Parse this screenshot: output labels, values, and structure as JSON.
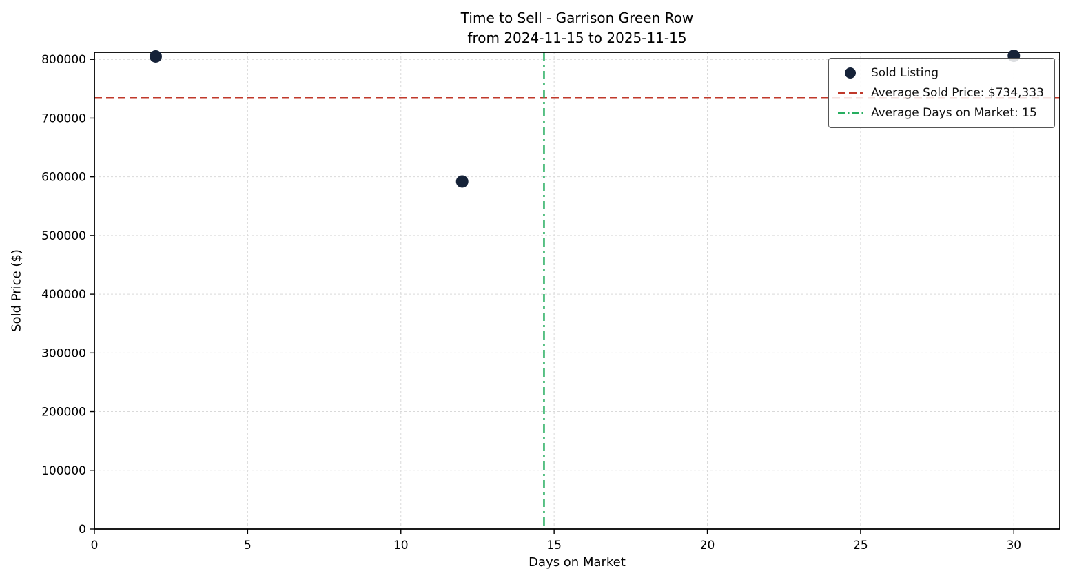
{
  "chart_data": {
    "type": "scatter",
    "title": "Time to Sell - Garrison Green Row",
    "subtitle": "from 2024-11-15 to 2025-11-15",
    "xlabel": "Days on Market",
    "ylabel": "Sold Price ($)",
    "series_name": "Sold Listing",
    "points": [
      {
        "x": 2,
        "y": 805000
      },
      {
        "x": 12,
        "y": 592000
      },
      {
        "x": 30,
        "y": 806000
      }
    ],
    "average_sold_price": 734333,
    "average_days_on_market": 14.67,
    "xlim": [
      0,
      31.5
    ],
    "ylim": [
      0,
      812000
    ],
    "xticks": [
      0,
      5,
      10,
      15,
      20,
      25,
      30
    ],
    "yticks": [
      0,
      100000,
      200000,
      300000,
      400000,
      500000,
      600000,
      700000,
      800000
    ],
    "grid": true,
    "grid_style": "dashed",
    "legend_position": "upper right",
    "colors": {
      "point": "#152238",
      "avg_price_line": "#c0392b",
      "avg_days_line": "#27ae60",
      "grid": "#d9d9d9",
      "axis": "#000000"
    }
  },
  "legend": {
    "items": [
      {
        "label": "Sold Listing",
        "type": "marker",
        "color": "#152238"
      },
      {
        "label": "Average Sold Price: $734,333",
        "type": "dashed",
        "color": "#c0392b"
      },
      {
        "label": "Average Days on Market: 15",
        "type": "dashdot",
        "color": "#27ae60"
      }
    ]
  }
}
